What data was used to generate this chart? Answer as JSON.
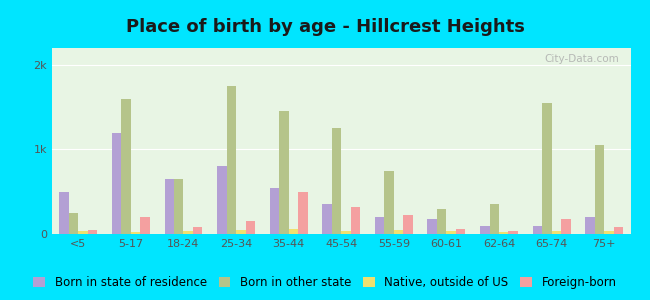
{
  "title": "Place of birth by age - Hillcrest Heights",
  "categories": [
    "<5",
    "5-17",
    "18-24",
    "25-34",
    "35-44",
    "45-54",
    "55-59",
    "60-61",
    "62-64",
    "65-74",
    "75+"
  ],
  "series": {
    "Born in state of residence": {
      "color": "#b3a0d4",
      "values": [
        500,
        1200,
        650,
        800,
        550,
        350,
        200,
        180,
        100,
        100,
        200
      ]
    },
    "Born in other state": {
      "color": "#b5c48a",
      "values": [
        250,
        1600,
        650,
        1750,
        1450,
        1250,
        750,
        300,
        350,
        1550,
        1050
      ]
    },
    "Native, outside of US": {
      "color": "#f0e070",
      "values": [
        30,
        20,
        30,
        50,
        60,
        40,
        50,
        30,
        20,
        30,
        30
      ]
    },
    "Foreign-born": {
      "color": "#f4a0a0",
      "values": [
        50,
        200,
        80,
        150,
        500,
        320,
        220,
        60,
        40,
        180,
        80
      ]
    }
  },
  "ylim": [
    0,
    2200
  ],
  "yticks": [
    0,
    1000,
    2000
  ],
  "ytick_labels": [
    "0",
    "1k",
    "2k"
  ],
  "background_color": "#e8f5e4",
  "outer_background": "#00e5ff",
  "bar_width": 0.18,
  "title_fontsize": 13,
  "legend_fontsize": 8.5,
  "axis_tick_fontsize": 8
}
